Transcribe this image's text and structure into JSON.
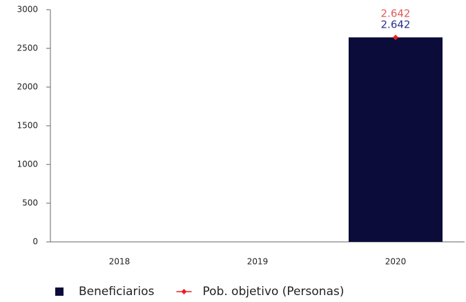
{
  "chart_data": {
    "type": "bar",
    "categories": [
      "2018",
      "2019",
      "2020"
    ],
    "series": [
      {
        "name": "Beneficiarios",
        "type": "bar",
        "color": "#0b0c3a",
        "values": [
          null,
          null,
          2642
        ],
        "value_labels": [
          null,
          null,
          "2.642"
        ],
        "label_color": "#2b2f8f"
      },
      {
        "name": "Pob. objetivo (Personas)",
        "type": "line",
        "color": "#ee1c25",
        "values": [
          null,
          null,
          2642
        ],
        "value_labels": [
          null,
          null,
          "2.642"
        ],
        "label_color": "#e05a5a"
      }
    ],
    "ylim": [
      0,
      3000
    ],
    "yticks": [
      0,
      500,
      1000,
      1500,
      2000,
      2500,
      3000
    ],
    "grid": false,
    "legend": "bottom"
  }
}
